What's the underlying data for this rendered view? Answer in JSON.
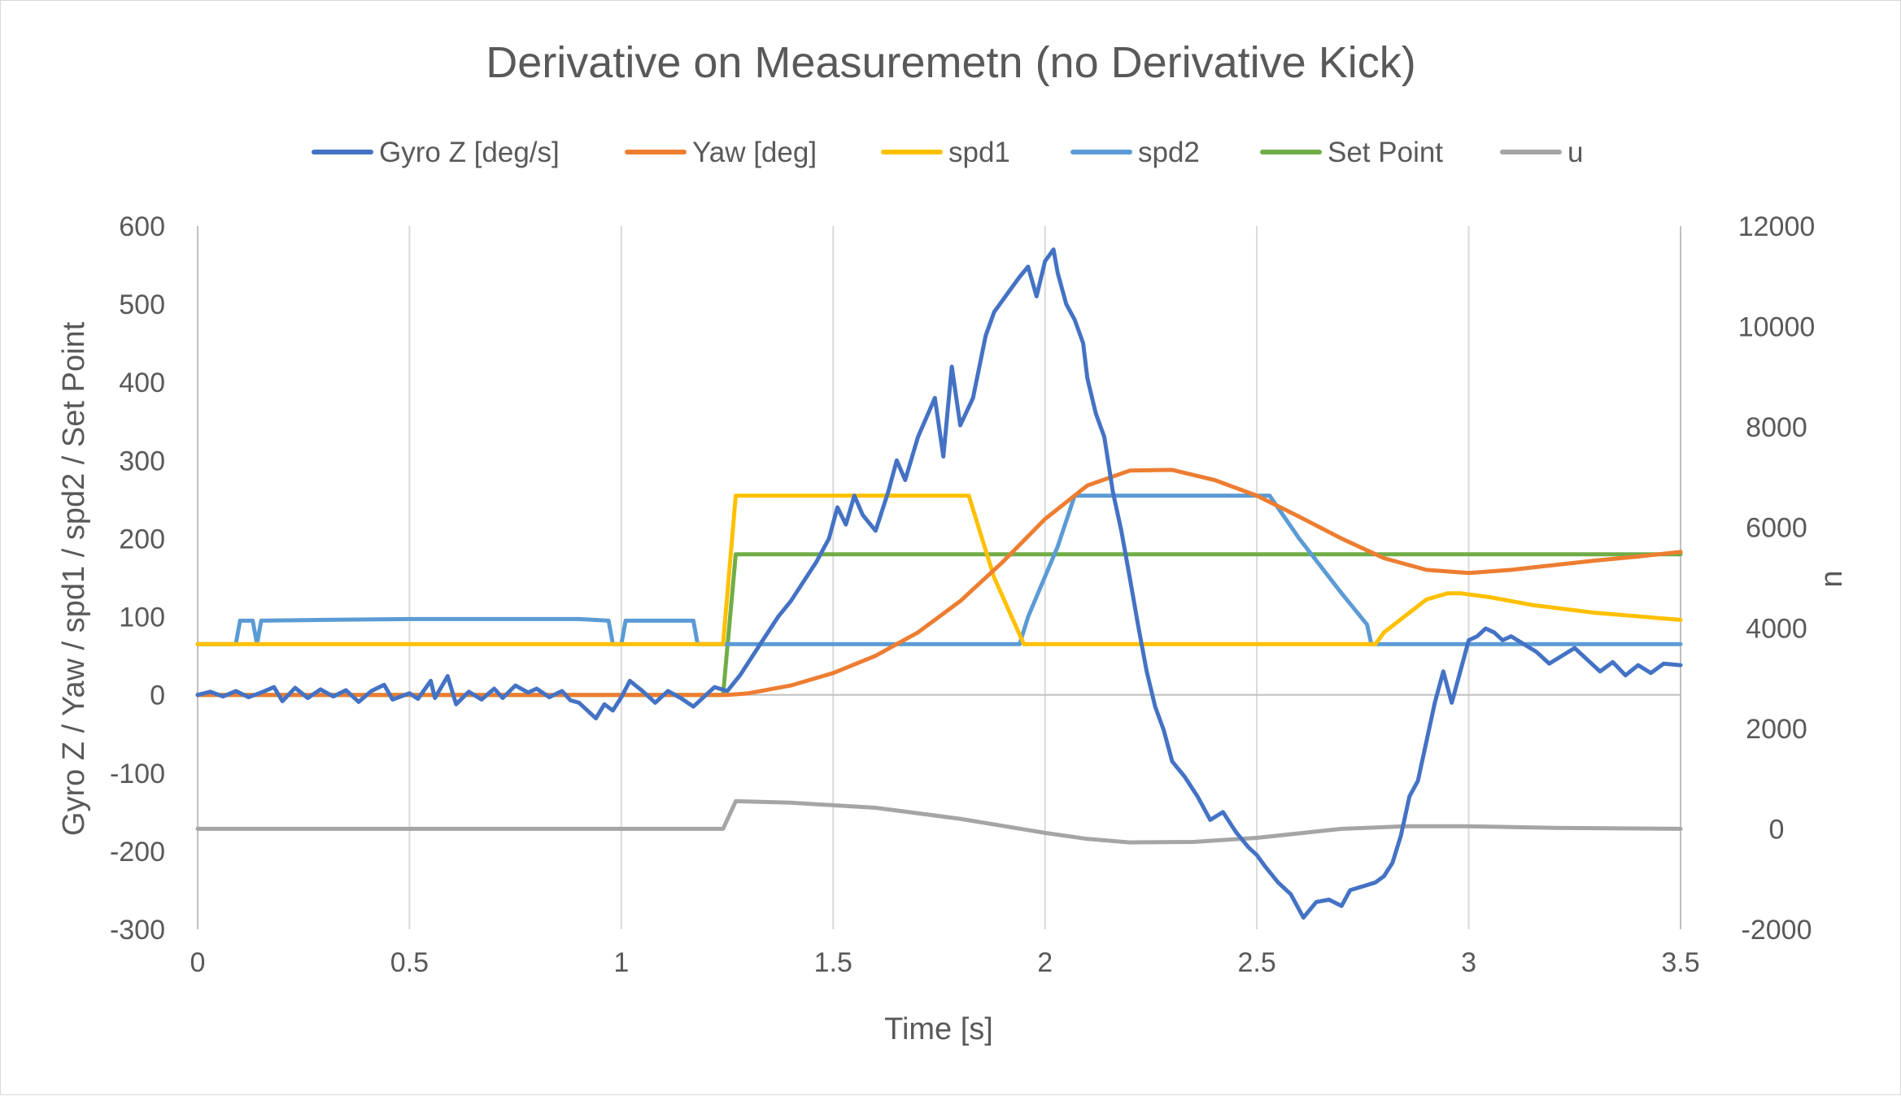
{
  "chart_data": {
    "type": "line",
    "title": "Derivative on Measuremetn (no Derivative Kick)",
    "xlabel": "Time [s]",
    "ylabel": "Gyro Z / Yaw / spd1 / spd2 / Set Point",
    "y2label": "u",
    "xlim": [
      0,
      3.5
    ],
    "ylim": [
      -300,
      600
    ],
    "y2lim": [
      -2000,
      12000
    ],
    "xticks": [
      "0",
      "0.5",
      "1",
      "1.5",
      "2",
      "2.5",
      "3",
      "3.5"
    ],
    "yticks": [
      "600",
      "500",
      "400",
      "300",
      "200",
      "100",
      "0",
      "-100",
      "-200",
      "-300"
    ],
    "y2ticks": [
      "12000",
      "10000",
      "8000",
      "6000",
      "4000",
      "2000",
      "0",
      "-2000"
    ],
    "grid": "vertical",
    "legend_position": "top",
    "series": [
      {
        "name": "Gyro Z [deg/s]",
        "axis": "left",
        "color": "#4472C4",
        "points": [
          [
            0,
            0
          ],
          [
            0.03,
            4
          ],
          [
            0.06,
            -2
          ],
          [
            0.09,
            5
          ],
          [
            0.12,
            -3
          ],
          [
            0.15,
            3
          ],
          [
            0.18,
            10
          ],
          [
            0.2,
            -8
          ],
          [
            0.23,
            9
          ],
          [
            0.26,
            -4
          ],
          [
            0.29,
            7
          ],
          [
            0.32,
            -2
          ],
          [
            0.35,
            6
          ],
          [
            0.38,
            -9
          ],
          [
            0.41,
            5
          ],
          [
            0.44,
            13
          ],
          [
            0.46,
            -6
          ],
          [
            0.5,
            2
          ],
          [
            0.52,
            -5
          ],
          [
            0.55,
            18
          ],
          [
            0.56,
            -4
          ],
          [
            0.59,
            24
          ],
          [
            0.61,
            -12
          ],
          [
            0.64,
            4
          ],
          [
            0.67,
            -6
          ],
          [
            0.7,
            8
          ],
          [
            0.72,
            -4
          ],
          [
            0.75,
            12
          ],
          [
            0.78,
            3
          ],
          [
            0.8,
            8
          ],
          [
            0.83,
            -3
          ],
          [
            0.86,
            5
          ],
          [
            0.88,
            -7
          ],
          [
            0.9,
            -10
          ],
          [
            0.92,
            -20
          ],
          [
            0.94,
            -30
          ],
          [
            0.96,
            -12
          ],
          [
            0.98,
            -20
          ],
          [
            1.0,
            -3
          ],
          [
            1.02,
            18
          ],
          [
            1.05,
            5
          ],
          [
            1.08,
            -10
          ],
          [
            1.11,
            5
          ],
          [
            1.14,
            -4
          ],
          [
            1.17,
            -15
          ],
          [
            1.2,
            0
          ],
          [
            1.22,
            10
          ],
          [
            1.25,
            5
          ],
          [
            1.28,
            25
          ],
          [
            1.31,
            50
          ],
          [
            1.34,
            75
          ],
          [
            1.37,
            100
          ],
          [
            1.4,
            120
          ],
          [
            1.43,
            145
          ],
          [
            1.46,
            170
          ],
          [
            1.49,
            200
          ],
          [
            1.51,
            240
          ],
          [
            1.53,
            218
          ],
          [
            1.55,
            255
          ],
          [
            1.57,
            230
          ],
          [
            1.6,
            210
          ],
          [
            1.63,
            260
          ],
          [
            1.65,
            300
          ],
          [
            1.67,
            275
          ],
          [
            1.7,
            330
          ],
          [
            1.72,
            355
          ],
          [
            1.74,
            380
          ],
          [
            1.76,
            305
          ],
          [
            1.78,
            420
          ],
          [
            1.8,
            345
          ],
          [
            1.83,
            380
          ],
          [
            1.86,
            460
          ],
          [
            1.88,
            490
          ],
          [
            1.9,
            505
          ],
          [
            1.92,
            520
          ],
          [
            1.94,
            535
          ],
          [
            1.96,
            548
          ],
          [
            1.98,
            510
          ],
          [
            2.0,
            555
          ],
          [
            2.02,
            570
          ],
          [
            2.03,
            540
          ],
          [
            2.05,
            500
          ],
          [
            2.07,
            480
          ],
          [
            2.09,
            450
          ],
          [
            2.1,
            405
          ],
          [
            2.12,
            360
          ],
          [
            2.14,
            330
          ],
          [
            2.16,
            260
          ],
          [
            2.18,
            210
          ],
          [
            2.2,
            150
          ],
          [
            2.22,
            88
          ],
          [
            2.24,
            30
          ],
          [
            2.26,
            -15
          ],
          [
            2.28,
            -45
          ],
          [
            2.3,
            -85
          ],
          [
            2.33,
            -105
          ],
          [
            2.36,
            -130
          ],
          [
            2.39,
            -160
          ],
          [
            2.42,
            -150
          ],
          [
            2.45,
            -175
          ],
          [
            2.48,
            -195
          ],
          [
            2.5,
            -205
          ],
          [
            2.52,
            -220
          ],
          [
            2.55,
            -240
          ],
          [
            2.58,
            -255
          ],
          [
            2.61,
            -285
          ],
          [
            2.64,
            -265
          ],
          [
            2.67,
            -262
          ],
          [
            2.7,
            -270
          ],
          [
            2.72,
            -250
          ],
          [
            2.75,
            -245
          ],
          [
            2.78,
            -240
          ],
          [
            2.8,
            -232
          ],
          [
            2.82,
            -215
          ],
          [
            2.84,
            -180
          ],
          [
            2.86,
            -130
          ],
          [
            2.88,
            -110
          ],
          [
            2.9,
            -60
          ],
          [
            2.92,
            -10
          ],
          [
            2.94,
            30
          ],
          [
            2.96,
            -10
          ],
          [
            2.98,
            30
          ],
          [
            3.0,
            70
          ],
          [
            3.02,
            75
          ],
          [
            3.04,
            85
          ],
          [
            3.06,
            80
          ],
          [
            3.08,
            70
          ],
          [
            3.1,
            75
          ],
          [
            3.13,
            65
          ],
          [
            3.16,
            55
          ],
          [
            3.19,
            40
          ],
          [
            3.22,
            50
          ],
          [
            3.25,
            60
          ],
          [
            3.28,
            45
          ],
          [
            3.31,
            30
          ],
          [
            3.34,
            42
          ],
          [
            3.37,
            25
          ],
          [
            3.4,
            38
          ],
          [
            3.43,
            28
          ],
          [
            3.46,
            40
          ],
          [
            3.5,
            38
          ]
        ]
      },
      {
        "name": "Yaw [deg]",
        "axis": "left",
        "color": "#ED7D31",
        "points": [
          [
            0,
            0
          ],
          [
            0.5,
            0
          ],
          [
            1.0,
            0
          ],
          [
            1.25,
            0
          ],
          [
            1.3,
            2
          ],
          [
            1.4,
            12
          ],
          [
            1.5,
            28
          ],
          [
            1.6,
            50
          ],
          [
            1.7,
            80
          ],
          [
            1.8,
            120
          ],
          [
            1.9,
            170
          ],
          [
            2.0,
            225
          ],
          [
            2.1,
            268
          ],
          [
            2.2,
            287
          ],
          [
            2.3,
            288
          ],
          [
            2.4,
            275
          ],
          [
            2.5,
            255
          ],
          [
            2.6,
            228
          ],
          [
            2.7,
            200
          ],
          [
            2.8,
            175
          ],
          [
            2.9,
            160
          ],
          [
            3.0,
            156
          ],
          [
            3.1,
            160
          ],
          [
            3.2,
            166
          ],
          [
            3.3,
            172
          ],
          [
            3.4,
            177
          ],
          [
            3.5,
            183
          ]
        ]
      },
      {
        "name": "spd1",
        "axis": "left",
        "color": "#FFC000",
        "points": [
          [
            0,
            65
          ],
          [
            1.22,
            65
          ],
          [
            1.24,
            65
          ],
          [
            1.27,
            255
          ],
          [
            1.82,
            255
          ],
          [
            1.88,
            150
          ],
          [
            1.95,
            65
          ],
          [
            2.78,
            65
          ],
          [
            2.8,
            80
          ],
          [
            2.9,
            122
          ],
          [
            2.95,
            130
          ],
          [
            2.98,
            130
          ],
          [
            3.05,
            125
          ],
          [
            3.15,
            115
          ],
          [
            3.3,
            105
          ],
          [
            3.5,
            96
          ]
        ]
      },
      {
        "name": "spd2",
        "axis": "left",
        "color": "#5B9BD5",
        "points": [
          [
            0,
            65
          ],
          [
            0.09,
            65
          ],
          [
            0.1,
            95
          ],
          [
            0.13,
            95
          ],
          [
            0.14,
            65
          ],
          [
            0.15,
            95
          ],
          [
            0.3,
            96
          ],
          [
            0.5,
            97
          ],
          [
            0.7,
            97
          ],
          [
            0.9,
            97
          ],
          [
            0.97,
            95
          ],
          [
            0.98,
            65
          ],
          [
            1.0,
            65
          ],
          [
            1.01,
            95
          ],
          [
            1.17,
            95
          ],
          [
            1.18,
            65
          ],
          [
            1.94,
            65
          ],
          [
            1.96,
            100
          ],
          [
            2.03,
            190
          ],
          [
            2.07,
            255
          ],
          [
            2.53,
            255
          ],
          [
            2.6,
            200
          ],
          [
            2.7,
            130
          ],
          [
            2.76,
            90
          ],
          [
            2.77,
            65
          ],
          [
            3.5,
            65
          ]
        ]
      },
      {
        "name": "Set Point",
        "axis": "left",
        "color": "#70AD47",
        "points": [
          [
            0,
            0
          ],
          [
            1.24,
            0
          ],
          [
            1.27,
            180
          ],
          [
            3.5,
            180
          ]
        ]
      },
      {
        "name": "u",
        "axis": "right",
        "color": "#A5A5A5",
        "points": [
          [
            0,
            0
          ],
          [
            1.24,
            0
          ],
          [
            1.27,
            550
          ],
          [
            1.4,
            520
          ],
          [
            1.6,
            420
          ],
          [
            1.8,
            200
          ],
          [
            2.0,
            -80
          ],
          [
            2.1,
            -200
          ],
          [
            2.2,
            -270
          ],
          [
            2.35,
            -260
          ],
          [
            2.5,
            -180
          ],
          [
            2.7,
            0
          ],
          [
            2.85,
            50
          ],
          [
            3.0,
            50
          ],
          [
            3.2,
            20
          ],
          [
            3.5,
            0
          ]
        ]
      }
    ]
  }
}
